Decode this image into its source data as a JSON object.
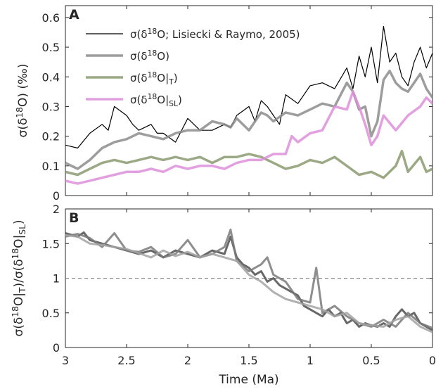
{
  "chart_data": [
    {
      "type": "line",
      "panel_label": "A",
      "ylabel_parts": [
        "σ(δ",
        "18",
        "O) (‰)"
      ],
      "ylim": [
        0,
        0.64
      ],
      "yticks": [
        "0",
        "0.1",
        "0.2",
        "0.3",
        "0.4",
        "0.5",
        "0.6"
      ],
      "ytick_values": [
        0,
        0.1,
        0.2,
        0.3,
        0.4,
        0.5,
        0.6
      ],
      "xlim": [
        3,
        0
      ],
      "xticks": [
        "3",
        "2.5",
        "2",
        "1.5",
        "1",
        "0.5",
        "0"
      ],
      "xtick_values": [
        3,
        2.5,
        2,
        1.5,
        1,
        0.5,
        0
      ],
      "legend_position": "top-center",
      "series": [
        {
          "name": "σ(δ18O; Lisiecki & Raymo, 2005)",
          "legend_parts": [
            "σ(δ",
            "18",
            "O; Lisiecki & Raymo, 2005)"
          ],
          "color": "#000000",
          "x": [
            3.0,
            2.9,
            2.8,
            2.7,
            2.65,
            2.6,
            2.5,
            2.45,
            2.4,
            2.3,
            2.25,
            2.2,
            2.1,
            2.0,
            1.9,
            1.8,
            1.7,
            1.65,
            1.6,
            1.5,
            1.45,
            1.4,
            1.35,
            1.3,
            1.25,
            1.2,
            1.1,
            1.0,
            0.9,
            0.8,
            0.7,
            0.65,
            0.6,
            0.55,
            0.5,
            0.45,
            0.4,
            0.35,
            0.3,
            0.25,
            0.2,
            0.15,
            0.1,
            0.05,
            0.0
          ],
          "y": [
            0.17,
            0.16,
            0.21,
            0.24,
            0.22,
            0.3,
            0.27,
            0.24,
            0.22,
            0.24,
            0.21,
            0.21,
            0.18,
            0.26,
            0.22,
            0.22,
            0.24,
            0.23,
            0.27,
            0.3,
            0.25,
            0.32,
            0.3,
            0.27,
            0.24,
            0.34,
            0.31,
            0.37,
            0.38,
            0.36,
            0.43,
            0.36,
            0.47,
            0.4,
            0.5,
            0.38,
            0.57,
            0.45,
            0.48,
            0.4,
            0.37,
            0.45,
            0.5,
            0.43,
            0.48
          ]
        },
        {
          "name": "σ(δ18O)",
          "legend_parts": [
            "σ(δ",
            "18",
            "O)"
          ],
          "color": "#8c8c8c",
          "x": [
            3.0,
            2.9,
            2.8,
            2.7,
            2.6,
            2.5,
            2.4,
            2.3,
            2.2,
            2.1,
            2.0,
            1.9,
            1.8,
            1.7,
            1.65,
            1.6,
            1.5,
            1.4,
            1.35,
            1.3,
            1.2,
            1.1,
            1.0,
            0.9,
            0.8,
            0.7,
            0.65,
            0.6,
            0.55,
            0.5,
            0.45,
            0.4,
            0.35,
            0.3,
            0.25,
            0.2,
            0.1,
            0.05,
            0.0
          ],
          "y": [
            0.11,
            0.09,
            0.12,
            0.16,
            0.18,
            0.19,
            0.21,
            0.2,
            0.19,
            0.21,
            0.22,
            0.22,
            0.25,
            0.24,
            0.23,
            0.26,
            0.22,
            0.28,
            0.27,
            0.25,
            0.28,
            0.27,
            0.29,
            0.31,
            0.3,
            0.38,
            0.35,
            0.29,
            0.3,
            0.2,
            0.25,
            0.39,
            0.42,
            0.38,
            0.36,
            0.35,
            0.41,
            0.36,
            0.33
          ]
        },
        {
          "name": "σ(δ18O|T)",
          "legend_parts": [
            "σ(δ",
            "18",
            "O|",
            "T",
            ")"
          ],
          "color": "#8a9a6f",
          "x": [
            3.0,
            2.9,
            2.8,
            2.7,
            2.6,
            2.5,
            2.4,
            2.3,
            2.2,
            2.1,
            2.0,
            1.9,
            1.8,
            1.7,
            1.6,
            1.5,
            1.4,
            1.3,
            1.2,
            1.1,
            1.0,
            0.9,
            0.8,
            0.7,
            0.6,
            0.5,
            0.4,
            0.3,
            0.25,
            0.2,
            0.1,
            0.05,
            0.0
          ],
          "y": [
            0.08,
            0.07,
            0.09,
            0.11,
            0.12,
            0.11,
            0.12,
            0.13,
            0.12,
            0.13,
            0.12,
            0.13,
            0.11,
            0.13,
            0.13,
            0.14,
            0.13,
            0.11,
            0.09,
            0.1,
            0.12,
            0.11,
            0.13,
            0.1,
            0.07,
            0.08,
            0.06,
            0.1,
            0.15,
            0.08,
            0.13,
            0.08,
            0.09
          ]
        },
        {
          "name": "σ(δ18O|SL)",
          "legend_parts": [
            "σ(δ",
            "18",
            "O|",
            "SL",
            ")"
          ],
          "color": "#de8fdb",
          "x": [
            3.0,
            2.9,
            2.8,
            2.7,
            2.6,
            2.5,
            2.4,
            2.3,
            2.2,
            2.1,
            2.0,
            1.9,
            1.8,
            1.7,
            1.6,
            1.5,
            1.4,
            1.3,
            1.2,
            1.15,
            1.1,
            1.0,
            0.9,
            0.8,
            0.7,
            0.65,
            0.6,
            0.55,
            0.5,
            0.45,
            0.4,
            0.3,
            0.2,
            0.1,
            0.05,
            0.0
          ],
          "y": [
            0.05,
            0.04,
            0.05,
            0.06,
            0.07,
            0.08,
            0.08,
            0.09,
            0.08,
            0.1,
            0.09,
            0.1,
            0.1,
            0.09,
            0.11,
            0.12,
            0.12,
            0.14,
            0.14,
            0.2,
            0.18,
            0.21,
            0.22,
            0.3,
            0.29,
            0.35,
            0.3,
            0.24,
            0.17,
            0.2,
            0.27,
            0.22,
            0.27,
            0.3,
            0.33,
            0.31
          ]
        }
      ]
    },
    {
      "type": "line",
      "panel_label": "B",
      "ylabel_parts": [
        "σ(δ",
        "18",
        "O|",
        "T",
        ")/σ(δ",
        "18",
        "O|",
        "SL",
        ")"
      ],
      "ylim": [
        0,
        2
      ],
      "yticks": [
        "0",
        "0.5",
        "1",
        "1.5",
        "2"
      ],
      "ytick_values": [
        0,
        0.5,
        1,
        1.5,
        2
      ],
      "xlim": [
        3,
        0
      ],
      "xticks": [
        "3",
        "2.5",
        "2",
        "1.5",
        "1",
        "0.5",
        "0"
      ],
      "xtick_values": [
        3,
        2.5,
        2,
        1.5,
        1,
        0.5,
        0
      ],
      "xlabel": "Time (Ma)",
      "reference_line": 1,
      "series": [
        {
          "color": "#4d4d4d",
          "x": [
            3.0,
            2.9,
            2.85,
            2.8,
            2.7,
            2.6,
            2.5,
            2.4,
            2.3,
            2.25,
            2.2,
            2.1,
            2.0,
            1.9,
            1.8,
            1.7,
            1.65,
            1.6,
            1.55,
            1.5,
            1.45,
            1.4,
            1.35,
            1.3,
            1.25,
            1.2,
            1.15,
            1.1,
            1.05,
            1.0,
            0.95,
            0.9,
            0.85,
            0.8,
            0.75,
            0.7,
            0.65,
            0.6,
            0.55,
            0.5,
            0.45,
            0.4,
            0.35,
            0.3,
            0.25,
            0.2,
            0.15,
            0.1,
            0.05,
            0.0
          ],
          "y": [
            1.65,
            1.6,
            1.66,
            1.55,
            1.5,
            1.45,
            1.4,
            1.35,
            1.4,
            1.35,
            1.3,
            1.4,
            1.35,
            1.3,
            1.4,
            1.35,
            1.6,
            1.3,
            1.2,
            1.15,
            1.05,
            1.1,
            0.95,
            1.0,
            0.9,
            0.85,
            0.8,
            0.75,
            0.6,
            0.55,
            0.5,
            0.45,
            0.55,
            0.45,
            0.5,
            0.35,
            0.4,
            0.3,
            0.35,
            0.32,
            0.3,
            0.35,
            0.3,
            0.45,
            0.55,
            0.45,
            0.5,
            0.35,
            0.3,
            0.25
          ]
        },
        {
          "color": "#7a7a7a",
          "x": [
            3.0,
            2.9,
            2.8,
            2.7,
            2.6,
            2.5,
            2.4,
            2.3,
            2.2,
            2.1,
            2.0,
            1.9,
            1.8,
            1.7,
            1.65,
            1.6,
            1.5,
            1.4,
            1.35,
            1.3,
            1.2,
            1.1,
            1.0,
            0.95,
            0.9,
            0.8,
            0.7,
            0.6,
            0.5,
            0.4,
            0.3,
            0.2,
            0.1,
            0.0
          ],
          "y": [
            1.6,
            1.64,
            1.58,
            1.45,
            1.65,
            1.4,
            1.38,
            1.45,
            1.3,
            1.35,
            1.55,
            1.3,
            1.35,
            1.45,
            1.7,
            1.25,
            1.1,
            1.2,
            1.3,
            1.05,
            0.95,
            0.7,
            0.65,
            1.15,
            0.5,
            0.6,
            0.45,
            0.35,
            0.3,
            0.4,
            0.3,
            0.5,
            0.35,
            0.28
          ]
        },
        {
          "color": "#a3a3a3",
          "x": [
            3.0,
            2.9,
            2.8,
            2.7,
            2.6,
            2.5,
            2.4,
            2.3,
            2.2,
            2.1,
            2.0,
            1.9,
            1.8,
            1.7,
            1.6,
            1.5,
            1.4,
            1.3,
            1.2,
            1.1,
            1.0,
            0.9,
            0.8,
            0.7,
            0.6,
            0.5,
            0.4,
            0.3,
            0.2,
            0.1,
            0.0
          ],
          "y": [
            1.62,
            1.6,
            1.5,
            1.48,
            1.45,
            1.42,
            1.36,
            1.3,
            1.4,
            1.32,
            1.38,
            1.3,
            1.35,
            1.3,
            1.25,
            1.05,
            0.95,
            0.8,
            0.7,
            0.65,
            0.6,
            0.55,
            0.45,
            0.5,
            0.35,
            0.32,
            0.3,
            0.4,
            0.45,
            0.3,
            0.22
          ]
        }
      ]
    }
  ]
}
